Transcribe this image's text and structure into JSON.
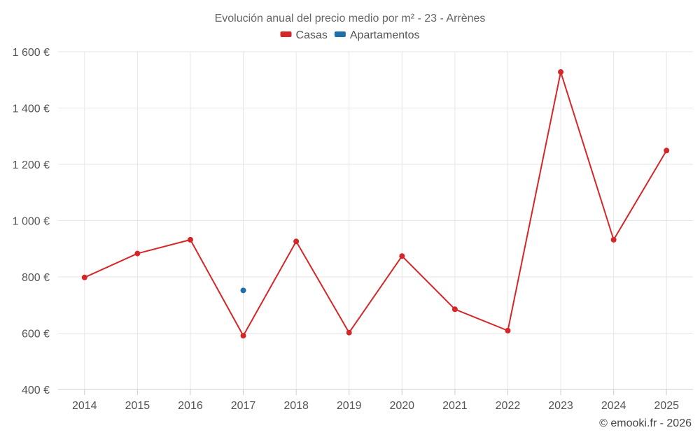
{
  "chart_data": {
    "type": "line",
    "title": "Evolución anual del precio medio por m² - 23 - Arrènes",
    "categories": [
      "2014",
      "2015",
      "2016",
      "2017",
      "2018",
      "2019",
      "2020",
      "2021",
      "2022",
      "2023",
      "2024",
      "2025"
    ],
    "series": [
      {
        "name": "Casas",
        "color": "#d62728",
        "values": [
          798,
          883,
          932,
          591,
          926,
          602,
          874,
          685,
          609,
          1528,
          932,
          1249
        ]
      },
      {
        "name": "Apartamentos",
        "color": "#1f6fa8",
        "values": [
          null,
          null,
          null,
          752,
          null,
          null,
          null,
          null,
          null,
          null,
          null,
          null
        ]
      }
    ],
    "y_ticks": [
      "400 €",
      "600 €",
      "800 €",
      "1 000 €",
      "1 200 €",
      "1 400 €",
      "1 600 €"
    ],
    "ylim": [
      400,
      1600
    ],
    "grid": true,
    "legend_position": "top-center"
  },
  "credit": "© emooki.fr - 2026"
}
